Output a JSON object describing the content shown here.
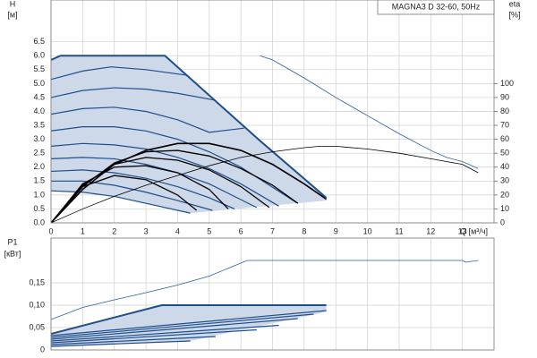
{
  "chart_data": [
    {
      "type": "line",
      "annotation": "MAGNA3 D 32-60, 50Hz",
      "ylabel": "H",
      "yunit": "[м]",
      "y2label": "eta",
      "y2unit": "[%]",
      "xlabel": "Q [м³/ч]",
      "xlim": [
        0,
        14
      ],
      "xticks": [
        0,
        1,
        2,
        3,
        4,
        5,
        6,
        7,
        8,
        9,
        10,
        11,
        12,
        13
      ],
      "xtick_labels": true,
      "ylim": [
        0,
        8
      ],
      "yticks": [
        {
          "value": 0,
          "label": "0.0"
        },
        0.5,
        {
          "value": 1,
          "label": "1.0"
        },
        1.5,
        {
          "value": 2,
          "label": "2.0"
        },
        2.5,
        {
          "value": 3,
          "label": "3.0"
        },
        3.5,
        {
          "value": 4,
          "label": "4.0"
        },
        4.5,
        {
          "value": 5,
          "label": "5.0"
        },
        5.5,
        {
          "value": 6,
          "label": "6.0"
        },
        6.5
      ],
      "y2lim": [
        0,
        160
      ],
      "y2ticks": [
        0,
        10,
        20,
        30,
        40,
        50,
        60,
        70,
        80,
        90,
        100
      ],
      "grid": true,
      "shade": {
        "color": "#cdd8e8",
        "x": [
          0,
          0,
          0.3,
          3.6,
          6.6,
          8.7,
          8.7,
          4.4,
          3,
          2,
          1
        ],
        "values": [
          1.15,
          5.85,
          6,
          6,
          2.95,
          0.9,
          0.8,
          0.35,
          0.7,
          0.95,
          1.1
        ]
      },
      "series": [
        {
          "color": "#1f4e8c",
          "width": 1.2,
          "x": [
            0,
            1,
            2,
            3,
            4.4
          ],
          "values": [
            1.15,
            1.1,
            0.95,
            0.7,
            0.35
          ]
        },
        {
          "color": "#1f4e8c",
          "width": 1.2,
          "x": [
            0,
            1,
            2,
            3,
            4,
            5.1
          ],
          "values": [
            1.5,
            1.5,
            1.35,
            1.1,
            0.8,
            0.45
          ]
        },
        {
          "color": "#1f4e8c",
          "width": 1.2,
          "x": [
            0,
            1,
            2,
            3,
            4,
            5,
            5.8
          ],
          "values": [
            1.85,
            1.9,
            1.8,
            1.6,
            1.3,
            0.9,
            0.5
          ]
        },
        {
          "color": "#1f4e8c",
          "width": 1.2,
          "x": [
            0,
            1,
            2,
            3,
            4,
            5,
            6.5
          ],
          "values": [
            2.3,
            2.35,
            2.3,
            2.1,
            1.8,
            1.4,
            0.55
          ]
        },
        {
          "color": "#1f4e8c",
          "width": 1.2,
          "x": [
            0,
            1,
            2,
            3,
            4,
            5,
            6,
            7.2
          ],
          "values": [
            2.75,
            2.85,
            2.8,
            2.65,
            2.35,
            1.95,
            1.4,
            0.6
          ]
        },
        {
          "color": "#1f4e8c",
          "width": 1.2,
          "x": [
            0,
            1,
            2,
            3,
            4,
            5,
            6,
            7.8
          ],
          "values": [
            3.3,
            3.45,
            3.45,
            3.3,
            3.0,
            2.55,
            2.0,
            0.7
          ]
        },
        {
          "color": "#1f4e8c",
          "width": 1.2,
          "x": [
            0,
            1,
            2,
            3,
            4,
            5,
            6.1
          ],
          "values": [
            3.9,
            4.1,
            4.15,
            4.0,
            3.7,
            3.25,
            3.4
          ]
        },
        {
          "color": "#1f4e8c",
          "width": 1.2,
          "x": [
            0,
            1,
            2,
            3,
            4,
            5.2
          ],
          "values": [
            4.5,
            4.75,
            4.85,
            4.8,
            4.65,
            4.4
          ]
        },
        {
          "color": "#1f4e8c",
          "width": 1.2,
          "x": [
            0,
            1,
            1.9,
            3,
            4.3
          ],
          "values": [
            5.15,
            5.45,
            5.6,
            5.5,
            5.3
          ]
        },
        {
          "color": "#000000",
          "width": 1.6,
          "x": [
            0,
            1,
            2,
            3,
            4,
            5,
            6,
            7,
            8,
            8.7
          ],
          "values": [
            0,
            1.2,
            2.1,
            2.6,
            2.85,
            2.85,
            2.6,
            2.1,
            1.4,
            0.85
          ]
        },
        {
          "color": "#000000",
          "width": 1.3,
          "x": [
            0,
            1,
            2,
            3,
            4,
            5,
            6,
            7,
            7.8
          ],
          "values": [
            0,
            1.3,
            2.15,
            2.55,
            2.6,
            2.4,
            1.95,
            1.35,
            0.7
          ]
        },
        {
          "color": "#000000",
          "width": 1.3,
          "x": [
            0,
            1,
            2,
            3,
            4,
            5,
            6,
            6.9
          ],
          "values": [
            0,
            1.35,
            2.1,
            2.35,
            2.25,
            1.9,
            1.3,
            0.55
          ]
        },
        {
          "color": "#000000",
          "width": 1.3,
          "x": [
            0,
            1,
            2,
            3,
            4,
            5,
            5.6
          ],
          "values": [
            0,
            1.4,
            2.0,
            2.05,
            1.8,
            1.2,
            0.5
          ]
        },
        {
          "color": "#000000",
          "width": 1.3,
          "x": [
            0,
            1,
            2,
            3,
            4,
            4.6
          ],
          "values": [
            0,
            1.3,
            1.7,
            1.55,
            1.0,
            0.45
          ]
        },
        {
          "color": "#1f4e8c",
          "width": 2,
          "x": [
            0,
            0.3,
            3.6,
            6.6,
            8.7
          ],
          "values": [
            5.85,
            6,
            6,
            2.95,
            0.9
          ]
        },
        {
          "color": "#2c5d9a",
          "width": 0.8,
          "x": [
            6.6,
            7,
            8,
            9,
            10,
            11,
            12,
            12.5,
            13,
            13.5
          ],
          "values": [
            6.0,
            5.85,
            5.2,
            4.5,
            3.85,
            3.2,
            2.6,
            2.35,
            2.2,
            1.95
          ]
        },
        {
          "color": "#000000",
          "width": 0.8,
          "axis": "y2",
          "x": [
            0,
            1,
            2,
            3,
            4,
            5,
            6,
            7,
            8,
            8.5,
            9,
            10,
            11,
            12,
            12.5,
            13,
            13.5
          ],
          "values": [
            0,
            10,
            19,
            27,
            34,
            41,
            47,
            51,
            54,
            55,
            55,
            53,
            50,
            46,
            44,
            42,
            36
          ]
        }
      ]
    },
    {
      "type": "line",
      "ylabel": "P1",
      "yunit": "[кВт]",
      "xlim": [
        0,
        14
      ],
      "xticks": [
        0,
        1,
        2,
        3,
        4,
        5,
        6,
        7,
        8,
        9,
        10,
        11,
        12,
        13
      ],
      "xtick_labels": false,
      "ylim": [
        0,
        0.25
      ],
      "yticks": [
        0,
        {
          "value": 0.05,
          "label": "0,05"
        },
        {
          "value": 0.1,
          "label": "0,10"
        },
        {
          "value": 0.15,
          "label": "0,15"
        }
      ],
      "grid": true,
      "shade": {
        "color": "#cdd8e8",
        "x": [
          0,
          0,
          3.5,
          8.7,
          8.7,
          4.4
        ],
        "values": [
          0.006,
          0.036,
          0.1,
          0.1,
          0.085,
          0.02
        ]
      },
      "series": [
        {
          "color": "#1f4e8c",
          "width": 1.2,
          "x": [
            0,
            4.4
          ],
          "values": [
            0.008,
            0.02
          ]
        },
        {
          "color": "#1f4e8c",
          "width": 1.2,
          "x": [
            0,
            5.2
          ],
          "values": [
            0.012,
            0.03
          ]
        },
        {
          "color": "#1f4e8c",
          "width": 1.2,
          "x": [
            0,
            6.5
          ],
          "values": [
            0.016,
            0.045
          ]
        },
        {
          "color": "#1f4e8c",
          "width": 1.2,
          "x": [
            0,
            7.2
          ],
          "values": [
            0.02,
            0.055
          ]
        },
        {
          "color": "#1f4e8c",
          "width": 1.2,
          "x": [
            0,
            7.8
          ],
          "values": [
            0.024,
            0.07
          ]
        },
        {
          "color": "#1f4e8c",
          "width": 1.2,
          "x": [
            0,
            8.3
          ],
          "values": [
            0.028,
            0.08
          ]
        },
        {
          "color": "#1f4e8c",
          "width": 1.2,
          "x": [
            0,
            8.7
          ],
          "values": [
            0.032,
            0.088
          ]
        },
        {
          "color": "#1f4e8c",
          "width": 2,
          "x": [
            0,
            3.5,
            8.7
          ],
          "values": [
            0.036,
            0.1,
            0.1
          ]
        },
        {
          "color": "#2c5d9a",
          "width": 0.8,
          "x": [
            0,
            1,
            2,
            3,
            4,
            5,
            6.2,
            13,
            13.1,
            13.5
          ],
          "values": [
            0.068,
            0.095,
            0.112,
            0.128,
            0.145,
            0.165,
            0.2,
            0.2,
            0.196,
            0.2
          ]
        }
      ]
    }
  ]
}
